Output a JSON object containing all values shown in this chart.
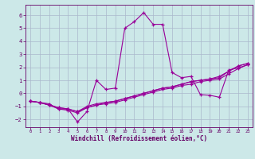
{
  "background_color": "#cce8e8",
  "grid_color": "#aab8cc",
  "line_color": "#990099",
  "xlabel": "Windchill (Refroidissement éolien,°C)",
  "xlabel_color": "#660066",
  "tick_color": "#660066",
  "xlim": [
    -0.5,
    23.5
  ],
  "ylim": [
    -2.6,
    6.8
  ],
  "yticks": [
    -2,
    -1,
    0,
    1,
    2,
    3,
    4,
    5,
    6
  ],
  "xticks": [
    0,
    1,
    2,
    3,
    4,
    5,
    6,
    7,
    8,
    9,
    10,
    11,
    12,
    13,
    14,
    15,
    16,
    17,
    18,
    19,
    20,
    21,
    22,
    23
  ],
  "series": [
    [
      0,
      -0.6,
      1,
      -0.7,
      2,
      -0.8,
      3,
      -1.2,
      4,
      -1.2,
      5,
      -2.2,
      6,
      -1.4,
      7,
      1.0,
      8,
      0.3,
      9,
      0.4,
      10,
      5.0,
      11,
      5.5,
      12,
      6.2,
      13,
      5.3,
      14,
      5.3,
      15,
      1.6,
      16,
      1.2,
      17,
      1.3,
      18,
      -0.1,
      19,
      -0.15,
      20,
      -0.3,
      21,
      1.8,
      22,
      1.95,
      23,
      2.2
    ],
    [
      0,
      -0.6,
      1,
      -0.7,
      2,
      -0.9,
      3,
      -1.2,
      4,
      -1.3,
      5,
      -1.5,
      6,
      -1.1,
      7,
      -0.9,
      8,
      -0.7,
      9,
      -0.6,
      10,
      -0.4,
      11,
      -0.2,
      12,
      0.0,
      13,
      0.2,
      14,
      0.4,
      15,
      0.5,
      16,
      0.7,
      17,
      0.9,
      18,
      1.0,
      19,
      1.1,
      20,
      1.2,
      21,
      1.7,
      22,
      2.1,
      23,
      2.3
    ],
    [
      0,
      -0.6,
      1,
      -0.7,
      2,
      -0.9,
      3,
      -1.1,
      4,
      -1.2,
      5,
      -1.4,
      6,
      -1.1,
      7,
      -0.9,
      8,
      -0.8,
      9,
      -0.7,
      10,
      -0.5,
      11,
      -0.3,
      12,
      -0.1,
      13,
      0.1,
      14,
      0.3,
      15,
      0.4,
      16,
      0.6,
      17,
      0.7,
      18,
      0.9,
      19,
      1.0,
      20,
      1.1,
      21,
      1.5,
      22,
      1.9,
      23,
      2.2
    ],
    [
      0,
      -0.6,
      1,
      -0.7,
      2,
      -0.9,
      3,
      -1.1,
      4,
      -1.2,
      5,
      -1.4,
      6,
      -1.0,
      7,
      -0.8,
      8,
      -0.7,
      9,
      -0.6,
      10,
      -0.4,
      11,
      -0.2,
      12,
      0.0,
      13,
      0.2,
      14,
      0.4,
      15,
      0.5,
      16,
      0.7,
      17,
      0.9,
      18,
      1.0,
      19,
      1.1,
      20,
      1.3,
      21,
      1.7,
      22,
      2.1,
      23,
      2.3
    ]
  ]
}
